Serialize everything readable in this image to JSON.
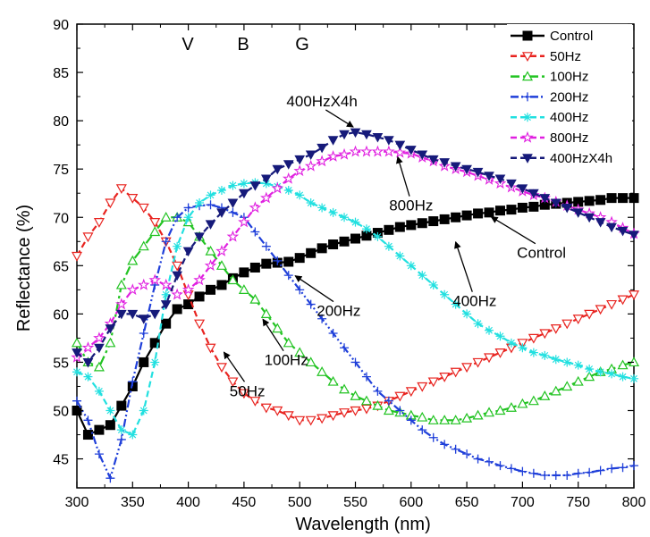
{
  "chart_data": {
    "type": "line",
    "title": "",
    "xlabel": "Wavelength (nm)",
    "ylabel": "Reflectance (%)",
    "xlim": [
      300,
      800
    ],
    "ylim": [
      42,
      90
    ],
    "xticks": [
      300,
      350,
      400,
      450,
      500,
      550,
      600,
      650,
      700,
      750,
      800
    ],
    "yticks": [
      45,
      50,
      55,
      60,
      65,
      70,
      75,
      80,
      85,
      90
    ],
    "legend_position": "top-right",
    "top_labels": [
      {
        "text": "V",
        "x": 400
      },
      {
        "text": "B",
        "x": 430
      },
      {
        "text": "G",
        "x": 460
      }
    ],
    "series": [
      {
        "name": "Control",
        "color": "#000000",
        "marker": "square-filled",
        "dash": "solid",
        "x": [
          300,
          310,
          320,
          330,
          340,
          350,
          360,
          370,
          380,
          390,
          400,
          410,
          420,
          430,
          440,
          450,
          460,
          470,
          480,
          490,
          500,
          510,
          520,
          530,
          540,
          550,
          560,
          570,
          580,
          590,
          600,
          610,
          620,
          630,
          640,
          650,
          660,
          670,
          680,
          690,
          700,
          710,
          720,
          730,
          740,
          750,
          760,
          770,
          780,
          790,
          800
        ],
        "y": [
          50,
          47.5,
          48,
          48.5,
          50.5,
          52.5,
          55,
          57,
          59,
          60.5,
          61,
          61.8,
          62.5,
          63,
          63.7,
          64.3,
          64.8,
          65.2,
          65.3,
          65.4,
          65.8,
          66.3,
          66.8,
          67.2,
          67.5,
          67.8,
          68.1,
          68.4,
          68.7,
          69,
          69.2,
          69.4,
          69.6,
          69.8,
          70,
          70.2,
          70.4,
          70.5,
          70.7,
          70.8,
          71,
          71.1,
          71.3,
          71.4,
          71.5,
          71.6,
          71.7,
          71.8,
          72,
          72,
          72
        ]
      },
      {
        "name": "50Hz",
        "color": "#e8231f",
        "marker": "triangle-down-open",
        "dash": "dash",
        "x": [
          300,
          310,
          320,
          330,
          340,
          350,
          360,
          370,
          380,
          390,
          400,
          410,
          420,
          430,
          440,
          450,
          460,
          470,
          480,
          490,
          500,
          510,
          520,
          530,
          540,
          550,
          560,
          570,
          580,
          590,
          600,
          610,
          620,
          630,
          640,
          650,
          660,
          670,
          680,
          690,
          700,
          710,
          720,
          730,
          740,
          750,
          760,
          770,
          780,
          790,
          800
        ],
        "y": [
          66,
          68,
          69.5,
          71.5,
          73,
          72,
          71,
          69.5,
          67.5,
          65,
          62,
          59,
          56.5,
          54.5,
          53,
          51.8,
          51,
          50.3,
          50,
          49.5,
          49,
          49,
          49.2,
          49.5,
          49.8,
          50,
          50.2,
          50.5,
          51,
          51.5,
          52,
          52.5,
          53,
          53.5,
          54,
          54.5,
          55,
          55.5,
          56,
          56.5,
          57,
          57.5,
          58,
          58.5,
          59,
          59.5,
          60,
          60.5,
          61,
          61.5,
          62
        ]
      },
      {
        "name": "100Hz",
        "color": "#22c322",
        "marker": "triangle-up-open",
        "dash": "dashdot",
        "x": [
          300,
          310,
          320,
          330,
          340,
          350,
          360,
          370,
          380,
          390,
          400,
          410,
          420,
          430,
          440,
          450,
          460,
          470,
          480,
          490,
          500,
          510,
          520,
          530,
          540,
          550,
          560,
          570,
          580,
          590,
          600,
          610,
          620,
          630,
          640,
          650,
          660,
          670,
          680,
          690,
          700,
          710,
          720,
          730,
          740,
          750,
          760,
          770,
          780,
          790,
          800
        ],
        "y": [
          57,
          55,
          54.5,
          57,
          63,
          65.5,
          67,
          68.5,
          70,
          70,
          69.5,
          68,
          66.5,
          65,
          63.5,
          62.5,
          61.5,
          60,
          58.5,
          57,
          56,
          55,
          54,
          53,
          52.2,
          51.5,
          51,
          50.5,
          50,
          49.8,
          49.5,
          49.3,
          49,
          49,
          49,
          49.2,
          49.5,
          49.8,
          50,
          50.3,
          50.7,
          51,
          51.5,
          52,
          52.5,
          53,
          53.5,
          54,
          54.3,
          54.7,
          55
        ]
      },
      {
        "name": "200Hz",
        "color": "#1f3fd9",
        "marker": "plus",
        "dash": "dashdotdot",
        "x": [
          300,
          310,
          320,
          330,
          340,
          350,
          360,
          370,
          380,
          390,
          400,
          410,
          420,
          430,
          440,
          450,
          460,
          470,
          480,
          490,
          500,
          510,
          520,
          530,
          540,
          550,
          560,
          570,
          580,
          590,
          600,
          610,
          620,
          630,
          640,
          650,
          660,
          670,
          680,
          690,
          700,
          710,
          720,
          730,
          740,
          750,
          760,
          770,
          780,
          790,
          800
        ],
        "y": [
          51,
          49,
          45.5,
          43,
          47,
          53,
          58,
          63,
          67.5,
          70,
          71,
          71.2,
          71.3,
          71,
          70.5,
          70,
          68.5,
          67,
          65.5,
          64,
          62.5,
          61,
          59.5,
          58,
          56.5,
          55,
          53.5,
          52,
          51,
          50,
          49,
          48,
          47.2,
          46.5,
          46,
          45.5,
          45,
          44.7,
          44.3,
          44,
          43.7,
          43.5,
          43.3,
          43.3,
          43.3,
          43.5,
          43.6,
          43.8,
          44,
          44.1,
          44.3
        ]
      },
      {
        "name": "400Hz",
        "color": "#22e0e0",
        "marker": "asterisk",
        "dash": "dash",
        "x": [
          300,
          310,
          320,
          330,
          340,
          350,
          360,
          370,
          380,
          390,
          400,
          410,
          420,
          430,
          440,
          450,
          460,
          470,
          480,
          490,
          500,
          510,
          520,
          530,
          540,
          550,
          560,
          570,
          580,
          590,
          600,
          610,
          620,
          630,
          640,
          650,
          660,
          670,
          680,
          690,
          700,
          710,
          720,
          730,
          740,
          750,
          760,
          770,
          780,
          790,
          800
        ],
        "y": [
          54,
          53.5,
          52,
          50,
          48,
          47.5,
          50,
          55,
          62,
          67,
          70,
          71.5,
          72.3,
          72.8,
          73.3,
          73.5,
          73.6,
          73.5,
          73.2,
          72.8,
          72.3,
          71.5,
          71,
          70.5,
          70,
          69.5,
          68.8,
          68,
          67,
          66,
          65,
          64,
          63,
          62,
          61,
          60,
          59,
          58.3,
          57.7,
          57,
          56.5,
          56,
          55.7,
          55.3,
          55,
          54.7,
          54.3,
          54,
          53.8,
          53.5,
          53.3
        ]
      },
      {
        "name": "800Hz",
        "color": "#e020e0",
        "marker": "star-open",
        "dash": "dash",
        "x": [
          300,
          310,
          320,
          330,
          340,
          350,
          360,
          370,
          380,
          390,
          400,
          410,
          420,
          430,
          440,
          450,
          460,
          470,
          480,
          490,
          500,
          510,
          520,
          530,
          540,
          550,
          560,
          570,
          580,
          590,
          600,
          610,
          620,
          630,
          640,
          650,
          660,
          670,
          680,
          690,
          700,
          710,
          720,
          730,
          740,
          750,
          760,
          770,
          780,
          790,
          800
        ],
        "y": [
          55.5,
          56.5,
          57.5,
          59,
          61,
          62.5,
          63,
          63.5,
          63,
          62,
          62.5,
          63.5,
          65,
          66.5,
          68,
          69.5,
          71,
          72,
          73,
          74,
          74.8,
          75.3,
          75.8,
          76.3,
          76.5,
          76.8,
          76.8,
          76.8,
          76.8,
          76.7,
          76.6,
          76.2,
          75.8,
          75.3,
          75,
          74.7,
          74.3,
          73.9,
          73.5,
          73.1,
          72.7,
          72.3,
          72,
          71.6,
          71.2,
          70.8,
          70.4,
          70,
          69.5,
          68.9,
          68.3
        ]
      },
      {
        "name": "400HzX4h",
        "color": "#161a7a",
        "marker": "triangle-down-filled",
        "dash": "dash",
        "x": [
          300,
          310,
          320,
          330,
          340,
          350,
          360,
          370,
          380,
          390,
          400,
          410,
          420,
          430,
          440,
          450,
          460,
          470,
          480,
          490,
          500,
          510,
          520,
          530,
          540,
          550,
          560,
          570,
          580,
          590,
          600,
          610,
          620,
          630,
          640,
          650,
          660,
          670,
          680,
          690,
          700,
          710,
          720,
          730,
          740,
          750,
          760,
          770,
          780,
          790,
          800
        ],
        "y": [
          56,
          55,
          56.5,
          58.5,
          60,
          60,
          59.5,
          60,
          61,
          64,
          66.5,
          68,
          69.3,
          70.5,
          71.5,
          72.5,
          73.3,
          74,
          75,
          75.5,
          76,
          76.5,
          77.2,
          78,
          78.6,
          78.8,
          78.6,
          78.3,
          78,
          77.5,
          77,
          76.5,
          76,
          75.7,
          75.3,
          75,
          74.7,
          74.3,
          74,
          73.5,
          73,
          72.5,
          72,
          71.5,
          71,
          70.5,
          70,
          69.5,
          69,
          68.6,
          68.2
        ]
      }
    ],
    "annotations": [
      {
        "text": "400HzX4h",
        "tx": 520,
        "ty": 81.5,
        "ax": 548,
        "ay": 78.8
      },
      {
        "text": "800Hz",
        "tx": 600,
        "ty": 70.7,
        "ax": 588,
        "ay": 76.8
      },
      {
        "text": "Control",
        "tx": 717,
        "ty": 65.8,
        "ax": 672,
        "ay": 70.6
      },
      {
        "text": "400Hz",
        "tx": 657,
        "ty": 60.8,
        "ax": 640,
        "ay": 68
      },
      {
        "text": "200Hz",
        "tx": 535,
        "ty": 59.8,
        "ax": 496,
        "ay": 64.5
      },
      {
        "text": "100Hz",
        "tx": 488,
        "ty": 54.7,
        "ax": 467,
        "ay": 60
      },
      {
        "text": "50Hz",
        "tx": 453,
        "ty": 51.5,
        "ax": 432,
        "ay": 56.6
      }
    ]
  }
}
